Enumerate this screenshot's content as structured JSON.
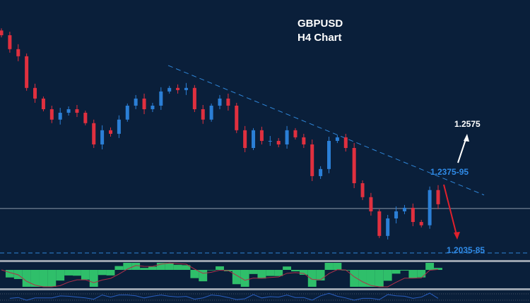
{
  "chart_data": {
    "type": "candlestick",
    "title": "GBPUSD",
    "subtitle": "H4 Chart",
    "ylim": [
      1.2014,
      1.3102
    ],
    "grid": false,
    "close": [
      1.2953,
      1.2894,
      1.2864,
      1.273,
      1.2685,
      1.264,
      1.2596,
      1.2625,
      1.264,
      1.2625,
      1.2581,
      1.2491,
      1.2551,
      1.2536,
      1.2596,
      1.2655,
      1.2685,
      1.264,
      1.2655,
      1.2715,
      1.273,
      1.2721,
      1.273,
      1.264,
      1.2596,
      1.2655,
      1.2685,
      1.2655,
      1.2551,
      1.2476,
      1.2551,
      1.2506,
      1.2506,
      1.2491,
      1.2551,
      1.2521,
      1.2491,
      1.2357,
      1.2387,
      1.2506,
      1.2521,
      1.2476,
      1.2327,
      1.2268,
      1.2208,
      1.2104,
      1.2178,
      1.2208,
      1.2223,
      1.2163,
      1.2149,
      1.2298,
      1.2238
    ],
    "trendline": {
      "from": 1.2825,
      "to": 1.2277,
      "style": "dashed"
    },
    "horizontal_level": 1.222,
    "support_level": 1.2032,
    "annotations": {
      "upside_target": "1.2575",
      "resistance": "1.2375-95",
      "downside_target": "1.2035-85"
    },
    "colors": {
      "background": "#0a1f3a",
      "bull": "#2b7fd6",
      "bear": "#e0303f",
      "trendline": "#2f86d8",
      "histogram": "#2fbf6a",
      "signal": "#b0304a",
      "oscillator": "#2a5fc0",
      "label_blue": "#2f8ae6",
      "up_arrow": "#ffffff",
      "down_arrow": "#e0202c"
    }
  }
}
